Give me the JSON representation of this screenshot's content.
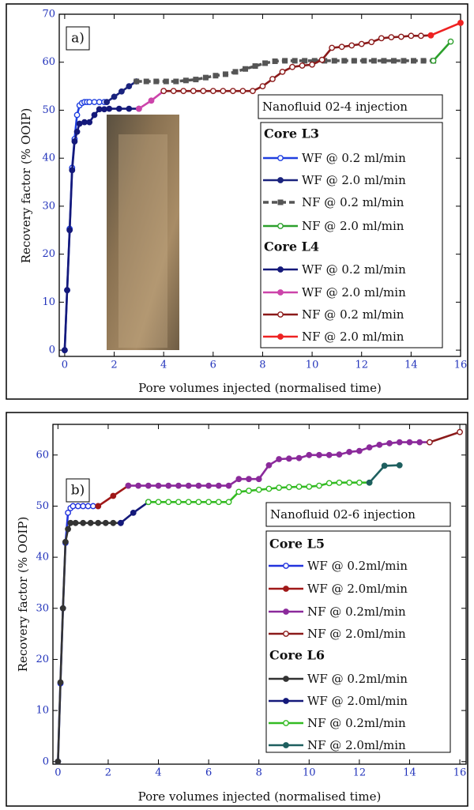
{
  "chart_data": [
    {
      "type": "line",
      "panel_label": "a)",
      "annotation": "Nanofluid 02-4 injection",
      "xlabel": "Pore volumes injected (normalised time)",
      "ylabel": "Recovery factor (% OOIP)",
      "xlim": [
        -0.22,
        16
      ],
      "ylim": [
        -1.3,
        70
      ],
      "xticks": [
        0,
        2,
        4,
        6,
        8,
        10,
        12,
        14,
        16
      ],
      "yticks": [
        0,
        10,
        20,
        30,
        40,
        50,
        60,
        70
      ],
      "groups": [
        {
          "name": "Core L3",
          "series": [
            {
              "name": "WF @ 0.2 ml/min",
              "color": "#1f3fe0",
              "marker": "open",
              "dashed": false,
              "x": [
                0,
                0.1,
                0.2,
                0.3,
                0.4,
                0.5,
                0.6,
                0.7,
                0.8,
                0.9,
                1.0,
                1.2,
                1.4,
                1.6,
                1.7
              ],
              "values": [
                0,
                12.5,
                25.3,
                38,
                44,
                49,
                51,
                51.5,
                51.7,
                51.7,
                51.7,
                51.7,
                51.7,
                51.7,
                51.7
              ]
            },
            {
              "name": "WF @ 2.0 ml/min",
              "color": "#1a237e",
              "marker": "filled",
              "dashed": false,
              "x": [
                1.7,
                2.0,
                2.3,
                2.6,
                2.9
              ],
              "values": [
                51.7,
                52.8,
                53.9,
                55,
                56
              ]
            },
            {
              "name": "NF @ 0.2 ml/min",
              "color": "#555555",
              "marker": "square",
              "dashed": true,
              "x": [
                2.9,
                3.3,
                3.7,
                4.1,
                4.5,
                4.9,
                5.3,
                5.7,
                6.1,
                6.5,
                6.9,
                7.3,
                7.7,
                8.1,
                8.5,
                8.9,
                9.3,
                9.7,
                10.1,
                10.5,
                10.9,
                11.3,
                11.7,
                12.1,
                12.5,
                12.9,
                13.3,
                13.7,
                14.1,
                14.5,
                14.9
              ],
              "values": [
                56,
                56,
                56,
                56,
                56,
                56.2,
                56.4,
                56.8,
                57.2,
                57.5,
                58,
                58.6,
                59.2,
                59.8,
                60.2,
                60.3,
                60.3,
                60.3,
                60.3,
                60.3,
                60.3,
                60.3,
                60.3,
                60.3,
                60.3,
                60.3,
                60.3,
                60.3,
                60.3,
                60.3,
                60.3
              ]
            },
            {
              "name": "NF @ 2.0 ml/min",
              "color": "#2ca02c",
              "marker": "open",
              "dashed": false,
              "x": [
                14.9,
                15.6
              ],
              "values": [
                60.3,
                64.3
              ]
            }
          ]
        },
        {
          "name": "Core L4",
          "series": [
            {
              "name": "WF @ 0.2 ml/min",
              "color": "#14197a",
              "marker": "filled",
              "dashed": false,
              "x": [
                0,
                0.1,
                0.2,
                0.3,
                0.4,
                0.5,
                0.6,
                0.8,
                1.0,
                1.2,
                1.4,
                1.6,
                1.8,
                2.2,
                2.6,
                3.0
              ],
              "values": [
                0,
                12.5,
                25,
                37.5,
                43.5,
                45.5,
                47.2,
                47.5,
                47.5,
                49,
                50.2,
                50.2,
                50.3,
                50.3,
                50.3,
                50.3
              ]
            },
            {
              "name": "WF @ 2.0 ml/min",
              "color": "#cc44aa",
              "marker": "filled",
              "dashed": false,
              "x": [
                3.0,
                3.5,
                4.0
              ],
              "values": [
                50.3,
                52,
                54
              ]
            },
            {
              "name": "NF @ 0.2 ml/min",
              "color": "#8b1a1a",
              "marker": "open",
              "dashed": false,
              "x": [
                4.0,
                4.4,
                4.8,
                5.2,
                5.6,
                6.0,
                6.4,
                6.8,
                7.2,
                7.6,
                8.0,
                8.4,
                8.8,
                9.2,
                9.6,
                10.0,
                10.4,
                10.8,
                11.2,
                11.6,
                12.0,
                12.4,
                12.8,
                13.2,
                13.6,
                14.0,
                14.4,
                14.8
              ],
              "values": [
                54,
                54,
                54,
                54,
                54,
                54,
                54,
                54,
                54,
                54,
                55,
                56.5,
                58,
                59,
                59.3,
                59.5,
                60.5,
                63,
                63.2,
                63.5,
                63.8,
                64.2,
                65,
                65.2,
                65.3,
                65.5,
                65.5,
                65.6
              ]
            },
            {
              "name": "NF @ 2.0 ml/min",
              "color": "#ee2222",
              "marker": "filled",
              "dashed": false,
              "x": [
                14.8,
                16
              ],
              "values": [
                65.6,
                68.2
              ]
            }
          ]
        }
      ]
    },
    {
      "type": "line",
      "panel_label": "b)",
      "annotation": "Nanofluid 02-6 injection",
      "xlabel": "Pore volumes injected (normalised time)",
      "ylabel": "Recovery factor (% OOIP)",
      "xlim": [
        -0.2,
        16.25
      ],
      "ylim": [
        -0.5,
        66
      ],
      "xticks": [
        0,
        2,
        4,
        6,
        8,
        10,
        12,
        14,
        16
      ],
      "yticks": [
        0,
        10,
        20,
        30,
        40,
        50,
        60
      ],
      "groups": [
        {
          "name": "Core L5",
          "series": [
            {
              "name": "WF @ 0.2ml/min",
              "color": "#2233dd",
              "marker": "open",
              "dashed": false,
              "x": [
                0,
                0.1,
                0.2,
                0.3,
                0.4,
                0.5,
                0.6,
                0.8,
                1.0,
                1.2,
                1.4,
                1.6
              ],
              "values": [
                0,
                15.3,
                30,
                42.8,
                48.7,
                49.6,
                50,
                50,
                50,
                50,
                50,
                50
              ]
            },
            {
              "name": "WF @ 2.0ml/min",
              "color": "#a01818",
              "marker": "filled",
              "dashed": false,
              "x": [
                1.6,
                2.2,
                2.8
              ],
              "values": [
                50,
                52,
                54
              ]
            },
            {
              "name": "NF @ 0.2ml/min",
              "color": "#8b2a9b",
              "marker": "filled",
              "dashed": false,
              "x": [
                2.8,
                3.2,
                3.6,
                4.0,
                4.4,
                4.8,
                5.2,
                5.6,
                6.0,
                6.4,
                6.8,
                7.2,
                7.6,
                8.0,
                8.4,
                8.8,
                9.2,
                9.6,
                10.0,
                10.4,
                10.8,
                11.2,
                11.6,
                12.0,
                12.4,
                12.8,
                13.2,
                13.6,
                14.0,
                14.4,
                14.8
              ],
              "values": [
                54,
                54,
                54,
                54,
                54,
                54,
                54,
                54,
                54,
                54,
                54,
                55.3,
                55.3,
                55.3,
                58,
                59.2,
                59.3,
                59.4,
                60,
                60,
                60,
                60.1,
                60.6,
                60.8,
                61.5,
                62,
                62.3,
                62.5,
                62.5,
                62.5,
                62.5
              ]
            },
            {
              "name": "NF @ 2.0ml/min",
              "color": "#8b1a1a",
              "marker": "open",
              "dashed": false,
              "x": [
                14.8,
                16
              ],
              "values": [
                62.5,
                64.5
              ]
            }
          ]
        },
        {
          "name": "Core L6",
          "series": [
            {
              "name": "WF @ 0.2ml/min",
              "color": "#333333",
              "marker": "filled",
              "dashed": false,
              "x": [
                0,
                0.1,
                0.2,
                0.3,
                0.4,
                0.5,
                0.7,
                1.0,
                1.3,
                1.6,
                1.9,
                2.2,
                2.5
              ],
              "values": [
                0,
                15.5,
                30,
                43,
                45.5,
                46.7,
                46.7,
                46.7,
                46.7,
                46.7,
                46.7,
                46.7,
                46.7
              ]
            },
            {
              "name": "WF @ 2.0ml/min",
              "color": "#14197a",
              "marker": "filled",
              "dashed": false,
              "x": [
                2.5,
                3.0,
                3.6
              ],
              "values": [
                46.7,
                48.7,
                50.8
              ]
            },
            {
              "name": "NF @ 0.2ml/min",
              "color": "#33bb22",
              "marker": "open",
              "dashed": false,
              "x": [
                3.6,
                4.0,
                4.4,
                4.8,
                5.2,
                5.6,
                6.0,
                6.4,
                6.8,
                7.2,
                7.6,
                8.0,
                8.4,
                8.8,
                9.2,
                9.6,
                10.0,
                10.4,
                10.8,
                11.2,
                11.6,
                12.0,
                12.4
              ],
              "values": [
                50.8,
                50.8,
                50.8,
                50.8,
                50.8,
                50.8,
                50.8,
                50.8,
                50.8,
                52.8,
                53,
                53.2,
                53.4,
                53.6,
                53.7,
                53.8,
                53.8,
                54,
                54.5,
                54.6,
                54.6,
                54.6,
                54.6
              ]
            },
            {
              "name": "NF @ 2.0ml/min",
              "color": "#1e5f5f",
              "marker": "filled",
              "dashed": false,
              "x": [
                12.4,
                13,
                13.6
              ],
              "values": [
                54.6,
                57.9,
                58
              ]
            }
          ]
        }
      ]
    }
  ]
}
